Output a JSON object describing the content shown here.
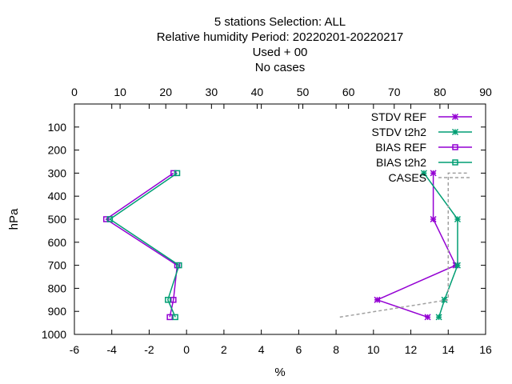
{
  "chart_data": {
    "type": "line",
    "title_lines": [
      "5 stations Selection: ALL",
      "Relative humidity  Period: 20220201-20220217",
      "Used   + 00",
      "No cases"
    ],
    "xlabel": "%",
    "ylabel": "hPa",
    "xlim": [
      -6,
      16
    ],
    "x_ticks": [
      -6,
      -4,
      -2,
      0,
      2,
      4,
      6,
      8,
      10,
      12,
      14,
      16
    ],
    "ylim": [
      1000,
      0
    ],
    "y_ticks": [
      100,
      200,
      300,
      400,
      500,
      600,
      700,
      800,
      900,
      1000
    ],
    "x2lim": [
      0,
      90
    ],
    "x2_ticks": [
      0,
      10,
      20,
      30,
      40,
      50,
      60,
      70,
      80,
      90
    ],
    "grid": false,
    "legend_position": "top-right",
    "series": [
      {
        "name": "STDV REF",
        "color": "#9400d3",
        "marker": "x",
        "points": [
          [
            12.9,
            925
          ],
          [
            10.2,
            850
          ],
          [
            14.4,
            700
          ],
          [
            13.2,
            500
          ],
          [
            13.2,
            300
          ]
        ]
      },
      {
        "name": "STDV t2h2",
        "color": "#009e73",
        "marker": "x",
        "points": [
          [
            13.5,
            925
          ],
          [
            13.8,
            850
          ],
          [
            14.5,
            700
          ],
          [
            14.5,
            500
          ],
          [
            12.7,
            300
          ]
        ]
      },
      {
        "name": "BIAS REF",
        "color": "#9400d3",
        "marker": "square",
        "points": [
          [
            -0.9,
            925
          ],
          [
            -0.7,
            850
          ],
          [
            -0.5,
            700
          ],
          [
            -4.3,
            500
          ],
          [
            -0.7,
            300
          ]
        ]
      },
      {
        "name": "BIAS t2h2",
        "color": "#009e73",
        "marker": "square",
        "points": [
          [
            -0.6,
            925
          ],
          [
            -1.0,
            850
          ],
          [
            -0.4,
            700
          ],
          [
            -4.1,
            500
          ],
          [
            -0.5,
            300
          ]
        ]
      },
      {
        "name": "CASES",
        "color": "#a0a0a0",
        "marker": "none",
        "dashed": true,
        "points": [
          [
            8.2,
            925
          ],
          [
            14.0,
            850
          ],
          [
            14.0,
            300
          ],
          [
            15.0,
            300
          ]
        ]
      }
    ]
  }
}
